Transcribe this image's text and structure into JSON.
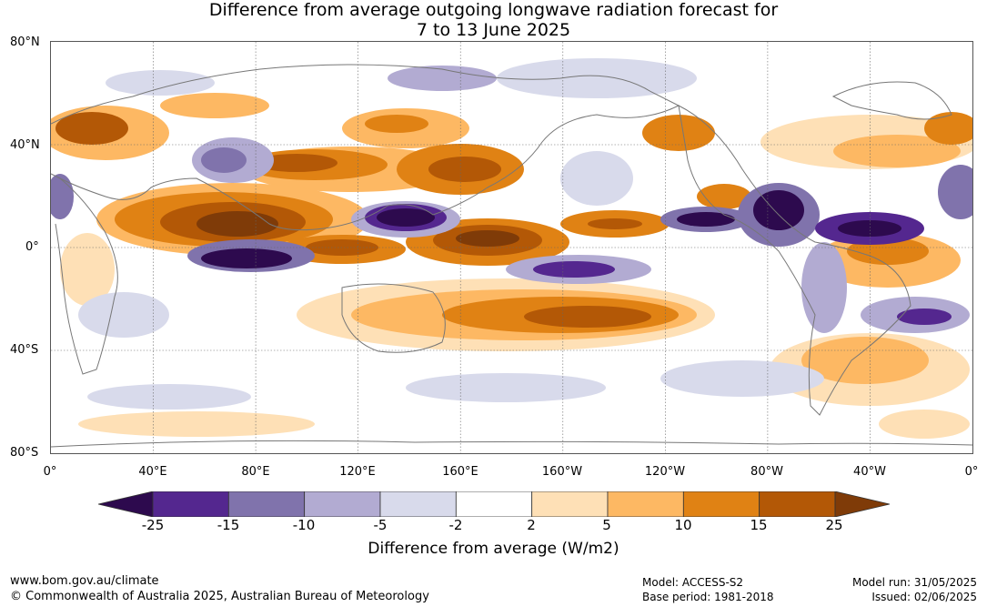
{
  "title": {
    "line1": "Difference from average outgoing longwave radiation forecast for",
    "line2": "7 to 13 June 2025"
  },
  "map": {
    "lat_labels": [
      "80°N",
      "40°N",
      "0°",
      "40°S",
      "80°S"
    ],
    "lon_labels": [
      "0°",
      "40°E",
      "80°E",
      "120°E",
      "160°E",
      "160°W",
      "120°W",
      "80°W",
      "40°W",
      "0°"
    ],
    "lat_range": [
      -80,
      80
    ],
    "lon_range": [
      0,
      360
    ],
    "grid": true
  },
  "colorbar": {
    "ticks": [
      "-25",
      "-15",
      "-10",
      "-5",
      "-2",
      "2",
      "5",
      "10",
      "15",
      "25"
    ],
    "colors": [
      "#2d0a4e",
      "#54278f",
      "#8073ac",
      "#b2abd2",
      "#d8daeb",
      "#ffffff",
      "#fee0b6",
      "#fdb863",
      "#e08214",
      "#b35806",
      "#7f3b08"
    ],
    "label": "Difference from average (W/m2)",
    "extend": "both"
  },
  "footer": {
    "url": "www.bom.gov.au/climate",
    "copyright": "© Commonwealth of Australia 2025, Australian Bureau of Meteorology",
    "model": "Model: ACCESS-S2",
    "base_period": "Base period: 1981-2018",
    "model_run": "Model run: 31/05/2025",
    "issued": "Issued: 02/06/2025"
  }
}
